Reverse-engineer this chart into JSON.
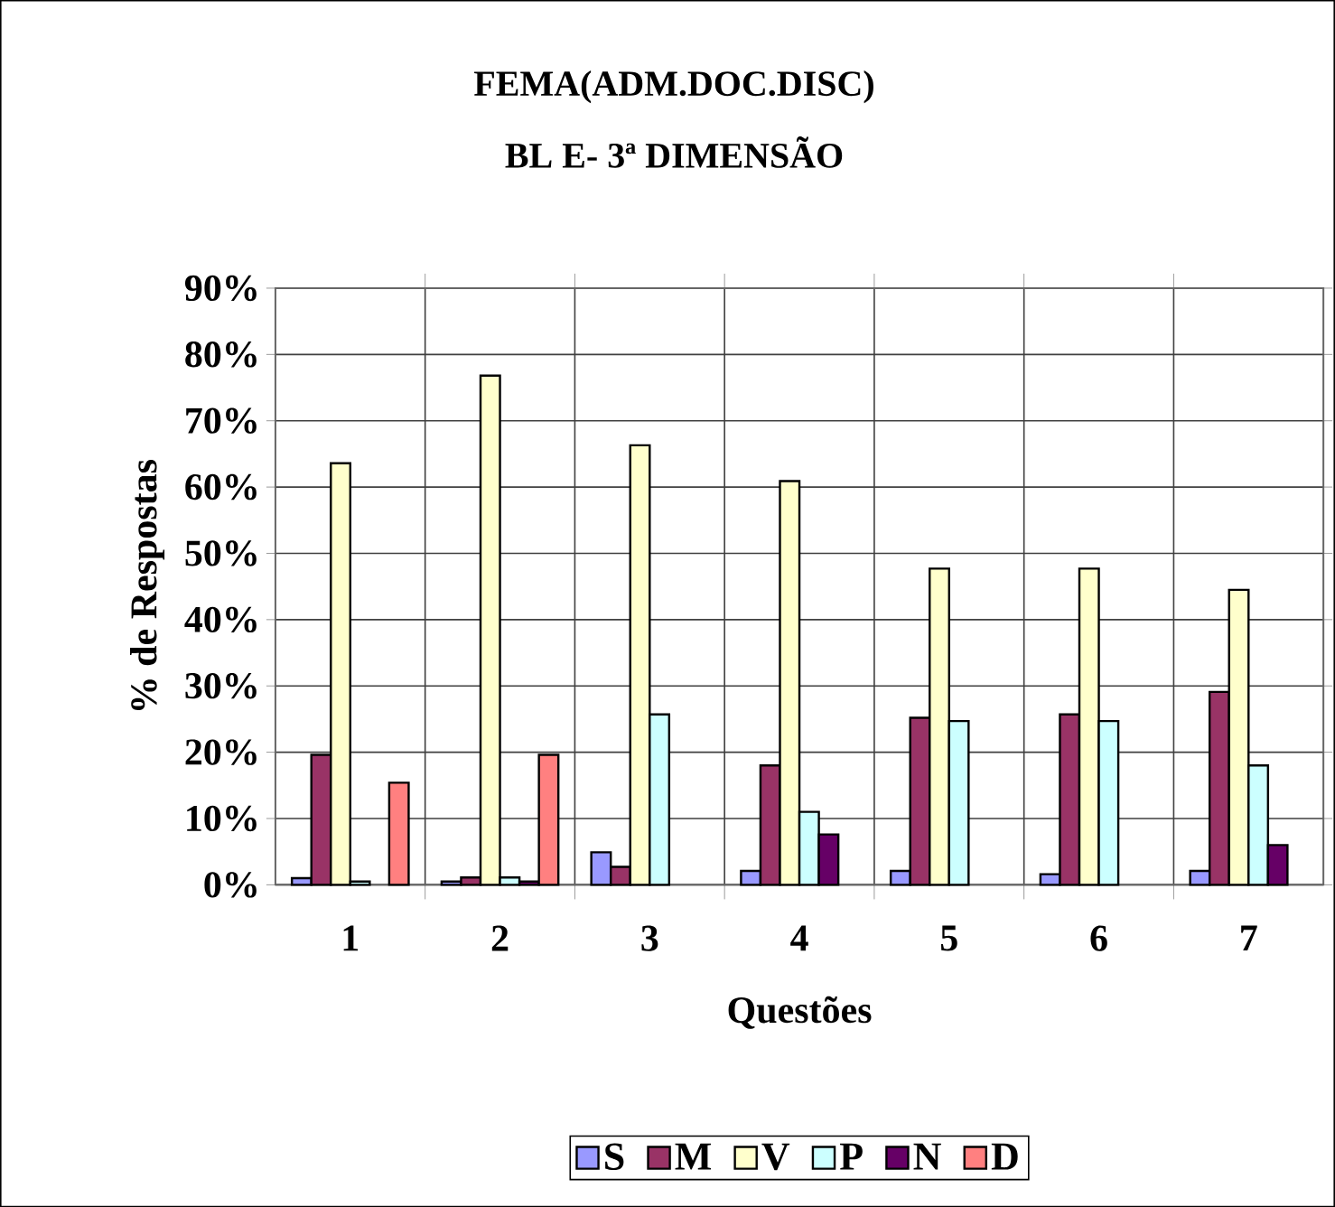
{
  "chart_data": {
    "type": "bar",
    "title": "FEMA(ADM.DOC.DISC)",
    "subtitle": "BL E- 3ª DIMENSÃO",
    "xlabel": "Questões",
    "ylabel": "% de Respostas",
    "categories": [
      "1",
      "2",
      "3",
      "4",
      "5",
      "6",
      "7"
    ],
    "series": [
      {
        "name": "S",
        "color": "#9999ff",
        "values": [
          1.0,
          0.5,
          4.9,
          2.1,
          2.1,
          1.6,
          2.1
        ]
      },
      {
        "name": "M",
        "color": "#993366",
        "values": [
          19.6,
          1.1,
          2.7,
          18.0,
          25.2,
          25.7,
          29.1
        ]
      },
      {
        "name": "V",
        "color": "#ffffcc",
        "values": [
          63.6,
          76.8,
          66.3,
          60.9,
          47.7,
          47.7,
          44.5
        ]
      },
      {
        "name": "P",
        "color": "#ccffff",
        "values": [
          0.5,
          1.1,
          25.7,
          11.0,
          24.7,
          24.7,
          18.0
        ]
      },
      {
        "name": "N",
        "color": "#660066",
        "values": [
          null,
          0.5,
          null,
          7.6,
          null,
          null,
          6.0
        ]
      },
      {
        "name": "D",
        "color": "#ff8080",
        "values": [
          15.4,
          19.6,
          null,
          null,
          null,
          null,
          null
        ]
      }
    ],
    "ylim": [
      0,
      90
    ],
    "yticks": [
      {
        "value": 0,
        "label": "0%"
      },
      {
        "value": 10,
        "label": "10%"
      },
      {
        "value": 20,
        "label": "20%"
      },
      {
        "value": 30,
        "label": "30%"
      },
      {
        "value": 40,
        "label": "40%"
      },
      {
        "value": 50,
        "label": "50%"
      },
      {
        "value": 60,
        "label": "60%"
      },
      {
        "value": 70,
        "label": "70%"
      },
      {
        "value": 80,
        "label": "80%"
      },
      {
        "value": 90,
        "label": "90%"
      }
    ],
    "grid": true,
    "legend": "bottom"
  }
}
